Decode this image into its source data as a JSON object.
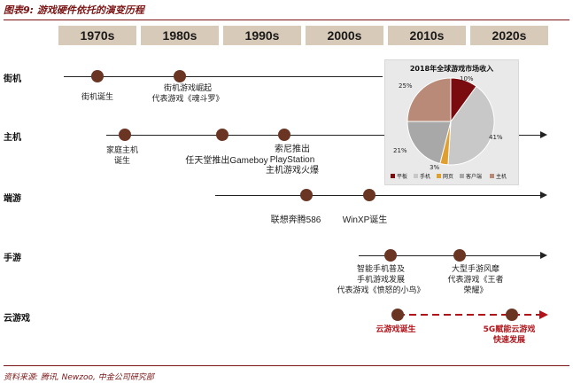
{
  "page": {
    "title": "图表9: 游戏硬件依托的演变历程",
    "source": "资料来源: 腾讯, Newzoo, 中金公司研究部"
  },
  "decades": [
    "1970s",
    "1980s",
    "1990s",
    "2000s",
    "2010s",
    "2020s"
  ],
  "tracks": [
    {
      "name": "街机",
      "events": [
        {
          "label": "街机诞生"
        },
        {
          "label": "街机游戏崛起\n代表游戏《魂斗罗》"
        }
      ]
    },
    {
      "name": "主机",
      "events": [
        {
          "label": "家庭主机\n诞生"
        },
        {
          "label": "任天堂推出Gameboy"
        },
        {
          "label": "索尼推出\nPlayStation\n主机游戏火爆"
        }
      ]
    },
    {
      "name": "端游",
      "events": [
        {
          "label": "联想奔腾586"
        },
        {
          "label": "WinXP诞生"
        }
      ]
    },
    {
      "name": "手游",
      "events": [
        {
          "label": "智能手机普及\n手机游戏发展\n代表游戏《愤怒的小鸟》"
        },
        {
          "label": "大型手游风靡\n代表游戏《王者\n荣耀》"
        }
      ]
    },
    {
      "name": "云游戏",
      "events": [
        {
          "label": "云游戏诞生"
        },
        {
          "label": "5G赋能云游戏\n快速发展"
        }
      ]
    }
  ],
  "chart_data": {
    "type": "pie",
    "title": "2018年全球游戏市场收入",
    "categories": [
      "手机",
      "网页",
      "客户端",
      "主机",
      "平板"
    ],
    "values": [
      41,
      3,
      21,
      25,
      10
    ],
    "value_labels": [
      "41%",
      "3%",
      "21%",
      "25%",
      "10%"
    ],
    "legend_order": [
      "平板",
      "手机",
      "网页",
      "客户端",
      "主机"
    ],
    "colors": {
      "平板": "#7a0c10",
      "手机": "#c8c8c8",
      "网页": "#e0a030",
      "客户端": "#a8a8a8",
      "主机": "#b98a78"
    },
    "legend_position": "bottom"
  },
  "colors": {
    "accent": "#7a1414",
    "dot": "#6b3523",
    "decade_bg": "#d8cab8",
    "cloud": "#b0141a"
  }
}
